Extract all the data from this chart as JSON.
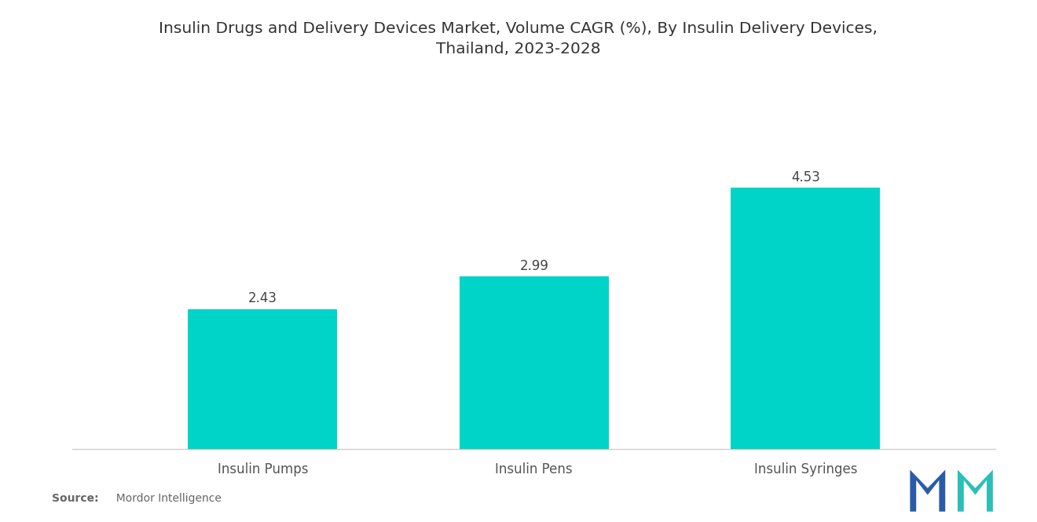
{
  "title": "Insulin Drugs and Delivery Devices Market, Volume CAGR (%), By Insulin Delivery Devices,\nThailand, 2023-2028",
  "categories": [
    "Insulin Pumps",
    "Insulin Pens",
    "Insulin Syringes"
  ],
  "values": [
    2.43,
    2.99,
    4.53
  ],
  "bar_color": "#00D4C8",
  "bar_width": 0.55,
  "value_labels": [
    "2.43",
    "2.99",
    "4.53"
  ],
  "ylim": [
    0,
    5.8
  ],
  "background_color": "#ffffff",
  "title_fontsize": 14.5,
  "label_fontsize": 12,
  "value_fontsize": 12,
  "source_bold": "Source:",
  "source_normal": "  Mordor Intelligence",
  "source_color": "#666666"
}
